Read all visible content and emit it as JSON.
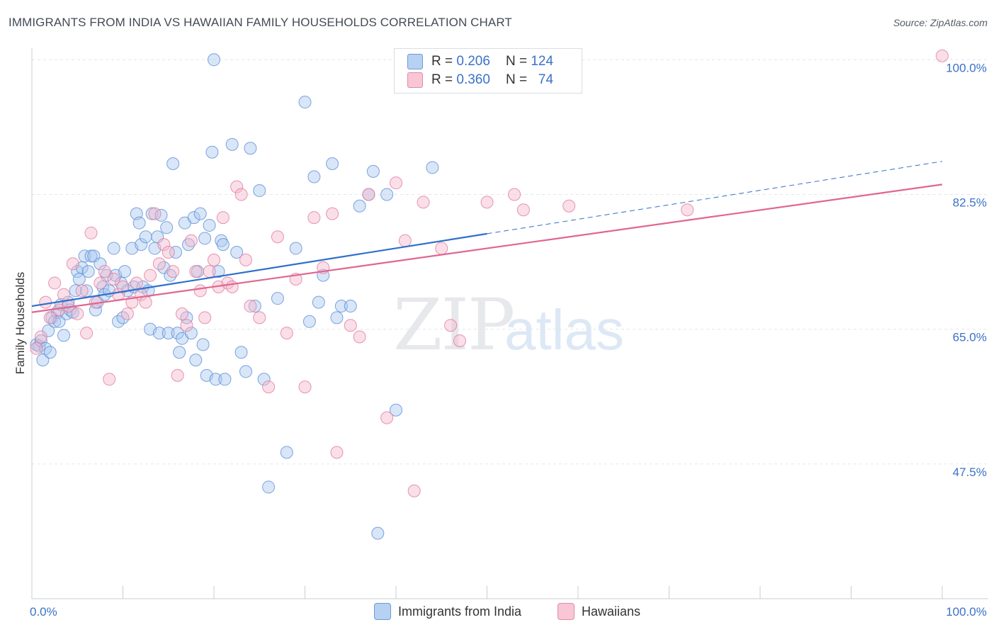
{
  "chart_data": {
    "type": "scatter",
    "title": "IMMIGRANTS FROM INDIA VS HAWAIIAN FAMILY HOUSEHOLDS CORRELATION CHART",
    "source": "Source: ZipAtlas.com",
    "ylabel": "Family Households",
    "xlabel": "",
    "xlim": [
      0,
      100
    ],
    "ylim": [
      30,
      101.5
    ],
    "x_tick_labels": [
      "0.0%",
      "100.0%"
    ],
    "y_ticks": [
      47.5,
      65.0,
      82.5,
      100.0
    ],
    "y_tick_labels": [
      "47.5%",
      "65.0%",
      "82.5%",
      "100.0%"
    ],
    "grid": true,
    "watermark": "ZIPatlas",
    "colors": {
      "blue_fill": "#a9c8f0",
      "blue_stroke": "#5b8fd6",
      "blue_line": "#2f6fcc",
      "pink_fill": "#f5b8cb",
      "pink_stroke": "#e27a9c",
      "pink_line": "#e0668f",
      "tick_label": "#3a72c8"
    },
    "legend": {
      "rows": [
        {
          "r_label": "R =",
          "r_value": "0.206",
          "n_label": "N =",
          "n_value": "124"
        },
        {
          "r_label": "R =",
          "r_value": "0.360",
          "n_label": "N =",
          "n_value": "74"
        }
      ]
    },
    "series": [
      {
        "name": "Immigrants from India",
        "trend": {
          "x0": 0,
          "y0": 68.0,
          "x1": 100,
          "y1": 86.8,
          "solid_until": 50
        },
        "points": [
          [
            0.5,
            63.0
          ],
          [
            0.8,
            62.8
          ],
          [
            1.0,
            63.5
          ],
          [
            1.2,
            61.0
          ],
          [
            1.5,
            62.5
          ],
          [
            1.8,
            64.8
          ],
          [
            2.0,
            62.0
          ],
          [
            2.2,
            66.5
          ],
          [
            2.5,
            66.0
          ],
          [
            2.8,
            67.2
          ],
          [
            3.0,
            66.0
          ],
          [
            3.2,
            68.2
          ],
          [
            3.5,
            64.2
          ],
          [
            3.8,
            67.0
          ],
          [
            4.0,
            68.5
          ],
          [
            4.2,
            67.5
          ],
          [
            4.5,
            67.2
          ],
          [
            4.8,
            70.0
          ],
          [
            5.0,
            72.5
          ],
          [
            5.2,
            71.5
          ],
          [
            5.5,
            73.0
          ],
          [
            5.8,
            74.5
          ],
          [
            6.0,
            70.0
          ],
          [
            6.2,
            72.5
          ],
          [
            6.5,
            74.5
          ],
          [
            6.8,
            74.5
          ],
          [
            7.0,
            67.5
          ],
          [
            7.2,
            68.5
          ],
          [
            7.5,
            73.5
          ],
          [
            7.8,
            70.5
          ],
          [
            8.0,
            69.5
          ],
          [
            8.2,
            72.0
          ],
          [
            8.5,
            70.0
          ],
          [
            9.0,
            75.5
          ],
          [
            9.2,
            72.0
          ],
          [
            9.5,
            66.0
          ],
          [
            9.8,
            71.0
          ],
          [
            10.0,
            66.5
          ],
          [
            10.2,
            72.5
          ],
          [
            10.5,
            70.0
          ],
          [
            11.0,
            75.5
          ],
          [
            11.2,
            70.5
          ],
          [
            11.5,
            80.0
          ],
          [
            11.8,
            78.8
          ],
          [
            12.0,
            76.0
          ],
          [
            12.2,
            70.5
          ],
          [
            12.5,
            77.0
          ],
          [
            12.8,
            70.0
          ],
          [
            13.0,
            65.0
          ],
          [
            13.2,
            80.0
          ],
          [
            13.5,
            75.5
          ],
          [
            13.8,
            77.0
          ],
          [
            14.0,
            64.5
          ],
          [
            14.2,
            79.8
          ],
          [
            14.5,
            73.0
          ],
          [
            14.8,
            78.2
          ],
          [
            15.0,
            64.5
          ],
          [
            15.2,
            72.0
          ],
          [
            15.5,
            86.5
          ],
          [
            15.8,
            75.0
          ],
          [
            16.0,
            64.5
          ],
          [
            16.2,
            62.0
          ],
          [
            16.5,
            63.8
          ],
          [
            16.8,
            78.8
          ],
          [
            17.0,
            66.5
          ],
          [
            17.2,
            76.0
          ],
          [
            17.5,
            64.5
          ],
          [
            17.8,
            79.5
          ],
          [
            18.0,
            61.0
          ],
          [
            18.2,
            72.5
          ],
          [
            18.5,
            80.0
          ],
          [
            18.8,
            63.0
          ],
          [
            19.0,
            76.8
          ],
          [
            19.2,
            59.0
          ],
          [
            19.5,
            78.5
          ],
          [
            19.8,
            88.0
          ],
          [
            20.0,
            100.0
          ],
          [
            20.2,
            58.5
          ],
          [
            20.5,
            72.5
          ],
          [
            20.8,
            76.5
          ],
          [
            21.0,
            76.0
          ],
          [
            21.2,
            58.5
          ],
          [
            22.0,
            89.0
          ],
          [
            22.5,
            75.0
          ],
          [
            23.0,
            62.0
          ],
          [
            23.5,
            59.5
          ],
          [
            24.0,
            88.5
          ],
          [
            24.5,
            68.0
          ],
          [
            25.0,
            83.0
          ],
          [
            25.5,
            58.5
          ],
          [
            26.0,
            44.5
          ],
          [
            27.0,
            69.0
          ],
          [
            28.0,
            49.0
          ],
          [
            29.0,
            75.5
          ],
          [
            30.0,
            94.5
          ],
          [
            30.5,
            66.0
          ],
          [
            31.0,
            84.8
          ],
          [
            31.5,
            68.5
          ],
          [
            32.0,
            72.0
          ],
          [
            33.0,
            86.5
          ],
          [
            33.5,
            66.5
          ],
          [
            34.0,
            68.0
          ],
          [
            35.0,
            68.0
          ],
          [
            36.0,
            81.0
          ],
          [
            37.0,
            82.5
          ],
          [
            37.5,
            85.5
          ],
          [
            38.0,
            38.5
          ],
          [
            39.0,
            82.5
          ],
          [
            40.0,
            54.5
          ],
          [
            44.0,
            86.0
          ]
        ]
      },
      {
        "name": "Hawaiians",
        "trend": {
          "x0": 0,
          "y0": 67.2,
          "x1": 100,
          "y1": 83.8,
          "solid_until": 100
        },
        "points": [
          [
            0.5,
            62.5
          ],
          [
            1.0,
            64.0
          ],
          [
            1.5,
            68.5
          ],
          [
            2.0,
            66.5
          ],
          [
            2.5,
            71.0
          ],
          [
            3.0,
            67.5
          ],
          [
            3.5,
            69.5
          ],
          [
            4.0,
            68.0
          ],
          [
            4.5,
            73.5
          ],
          [
            5.0,
            67.0
          ],
          [
            5.5,
            70.0
          ],
          [
            6.0,
            64.5
          ],
          [
            6.5,
            77.5
          ],
          [
            7.0,
            68.5
          ],
          [
            7.5,
            71.0
          ],
          [
            8.0,
            72.5
          ],
          [
            8.5,
            58.5
          ],
          [
            9.0,
            71.5
          ],
          [
            9.5,
            69.5
          ],
          [
            10.0,
            70.5
          ],
          [
            10.5,
            67.0
          ],
          [
            11.0,
            68.5
          ],
          [
            11.5,
            71.0
          ],
          [
            12.0,
            69.5
          ],
          [
            12.5,
            68.5
          ],
          [
            13.0,
            72.0
          ],
          [
            13.5,
            80.0
          ],
          [
            14.0,
            73.5
          ],
          [
            14.5,
            76.0
          ],
          [
            15.0,
            75.0
          ],
          [
            15.5,
            72.5
          ],
          [
            16.0,
            59.0
          ],
          [
            16.5,
            67.0
          ],
          [
            17.0,
            65.5
          ],
          [
            17.5,
            76.5
          ],
          [
            18.0,
            72.5
          ],
          [
            18.5,
            70.0
          ],
          [
            19.0,
            66.5
          ],
          [
            19.5,
            72.5
          ],
          [
            20.0,
            74.0
          ],
          [
            20.5,
            70.5
          ],
          [
            21.0,
            79.5
          ],
          [
            21.5,
            71.0
          ],
          [
            22.0,
            70.5
          ],
          [
            22.5,
            83.5
          ],
          [
            23.0,
            82.5
          ],
          [
            23.5,
            74.0
          ],
          [
            24.0,
            68.0
          ],
          [
            25.0,
            66.5
          ],
          [
            26.0,
            57.5
          ],
          [
            27.0,
            77.0
          ],
          [
            28.0,
            64.5
          ],
          [
            29.0,
            71.5
          ],
          [
            30.0,
            57.5
          ],
          [
            31.0,
            79.5
          ],
          [
            32.0,
            73.0
          ],
          [
            33.0,
            80.0
          ],
          [
            33.5,
            49.0
          ],
          [
            35.0,
            65.5
          ],
          [
            36.0,
            64.0
          ],
          [
            37.0,
            82.5
          ],
          [
            39.0,
            53.5
          ],
          [
            40.0,
            84.0
          ],
          [
            41.0,
            76.5
          ],
          [
            42.0,
            44.0
          ],
          [
            43.0,
            81.5
          ],
          [
            45.0,
            75.5
          ],
          [
            46.0,
            65.5
          ],
          [
            47.0,
            63.5
          ],
          [
            50.0,
            81.5
          ],
          [
            53.0,
            82.5
          ],
          [
            54.0,
            80.5
          ],
          [
            59.0,
            81.0
          ],
          [
            72.0,
            80.5
          ],
          [
            100.0,
            100.5
          ]
        ]
      }
    ]
  }
}
